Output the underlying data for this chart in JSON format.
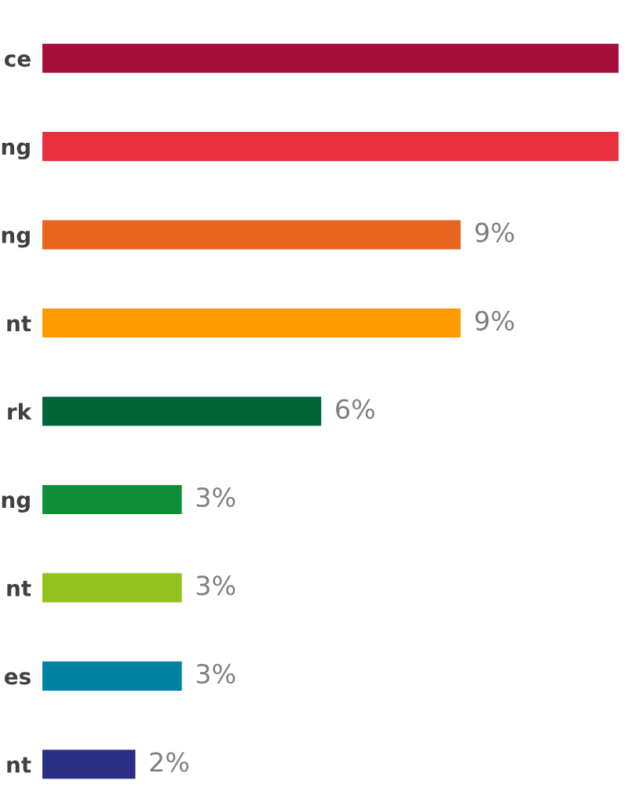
{
  "chart_data": {
    "type": "bar",
    "orientation": "horizontal",
    "categories": [
      "ce",
      "ng",
      "ng",
      "nt",
      "rk",
      "ng",
      "nt",
      "es",
      "nt"
    ],
    "values": [
      12.4,
      12.4,
      9,
      9,
      6,
      3,
      3,
      3,
      2
    ],
    "value_labels": [
      null,
      null,
      "9%",
      "9%",
      "6%",
      "3%",
      "3%",
      "3%",
      "2%"
    ],
    "colors": [
      "#a50f3c",
      "#e8303f",
      "#e8651e",
      "#fd9b00",
      "#006437",
      "#0f8f3a",
      "#95c11f",
      "#0083a3",
      "#2a2e85"
    ],
    "grid": false,
    "legend": false
  }
}
